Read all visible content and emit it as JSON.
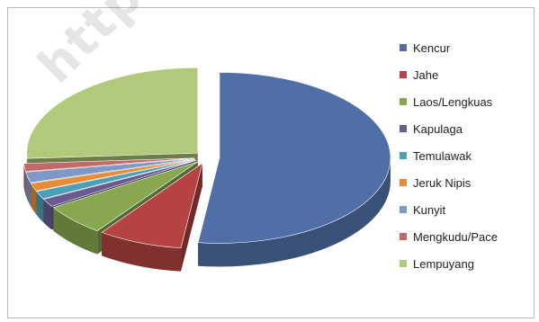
{
  "chart_data": {
    "type": "pie",
    "style": "3d-exploded",
    "legend_position": "right",
    "slices": [
      {
        "label": "Kencur",
        "value": 52.0,
        "color": "#4f6fa6"
      },
      {
        "label": "Jahe",
        "value": 8.0,
        "color": "#b54341"
      },
      {
        "label": "Laos/Lengkuas",
        "value": 6.0,
        "color": "#88a84f"
      },
      {
        "label": "Kapulaga",
        "value": 1.5,
        "color": "#6a5a8f"
      },
      {
        "label": "Temulawak",
        "value": 1.5,
        "color": "#4aa0b8"
      },
      {
        "label": "Jeruk Nipis",
        "value": 1.5,
        "color": "#e78c37"
      },
      {
        "label": "Kunyit",
        "value": 2.0,
        "color": "#7e98c6"
      },
      {
        "label": "Mengkudu/Pace",
        "value": 1.5,
        "color": "#c26a69"
      },
      {
        "label": "Lempuyang",
        "value": 26.0,
        "color": "#b0c97b"
      }
    ]
  },
  "watermark": {
    "text": "https://"
  }
}
